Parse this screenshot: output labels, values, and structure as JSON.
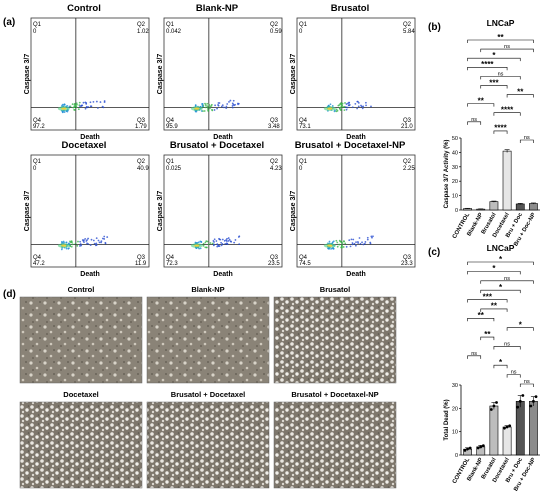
{
  "panel_labels": {
    "a": "(a)",
    "b": "(b)",
    "c": "(c)",
    "d": "(d)"
  },
  "flow": {
    "ylabel": "Caspase 3/7",
    "xlabel": "Death",
    "panels": [
      {
        "title": "Control",
        "q1": "0",
        "q2": "1.02",
        "q3": "1.79",
        "q4": "97.2"
      },
      {
        "title": "Blank-NP",
        "q1": "0.042",
        "q2": "0.59",
        "q3": "3.48",
        "q4": "95.9"
      },
      {
        "title": "Brusatol",
        "q1": "0",
        "q2": "5.84",
        "q3": "21.0",
        "q4": "73.1"
      },
      {
        "title": "Docetaxel",
        "q1": "0",
        "q2": "40.9",
        "q3": "11.9",
        "q4": "47.2"
      },
      {
        "title": "Brusatol + Docetaxel",
        "q1": "0.025",
        "q2": "4.23",
        "q3": "23.5",
        "q4": "72.3"
      },
      {
        "title": "Brusatol + Docetaxel-NP",
        "q1": "0",
        "q2": "2.25",
        "q3": "23.3",
        "q4": "74.5"
      }
    ]
  },
  "micro": {
    "titles": [
      "Control",
      "Blank-NP",
      "Brusatol",
      "Docetaxel",
      "Brusatol + Docetaxel",
      "Brusatol + Docetaxel-NP"
    ]
  },
  "chart_data": [
    {
      "type": "bar",
      "title": "LNCaP",
      "ylabel": "Caspase 3/7 Activity (%)",
      "ylim": [
        0,
        50
      ],
      "yticks": [
        0,
        10,
        20,
        30,
        40,
        50
      ],
      "categories": [
        "CONTROL",
        "Blank-NP",
        "Brusatol",
        "Docetaxel",
        "Bru + Doc",
        "Bru + Doc-NP"
      ],
      "values": [
        1.0,
        0.6,
        5.8,
        40.9,
        4.2,
        4.5
      ],
      "errors": [
        0.2,
        0.2,
        0.4,
        1.0,
        0.4,
        0.4
      ],
      "colors": [
        "#bdbdbd",
        "#bdbdbd",
        "#bdbdbd",
        "#e6e6e6",
        "#555555",
        "#8c8c8c"
      ],
      "significance": [
        {
          "a": 0,
          "b": 5,
          "label": "**"
        },
        {
          "a": 1,
          "b": 5,
          "label": "ns"
        },
        {
          "a": 0,
          "b": 4,
          "label": "*"
        },
        {
          "a": 0,
          "b": 3,
          "label": "****"
        },
        {
          "a": 1,
          "b": 4,
          "label": "ns"
        },
        {
          "a": 1,
          "b": 3,
          "label": "***"
        },
        {
          "a": 3,
          "b": 5,
          "label": "**"
        },
        {
          "a": 0,
          "b": 2,
          "label": "**"
        },
        {
          "a": 2,
          "b": 4,
          "label": "****"
        },
        {
          "a": 0,
          "b": 1,
          "label": "ns"
        },
        {
          "a": 2,
          "b": 3,
          "label": "****"
        },
        {
          "a": 4,
          "b": 5,
          "label": "ns"
        }
      ]
    },
    {
      "type": "bar",
      "title": "LNCaP",
      "ylabel": "Total Dead (%)",
      "ylim": [
        0,
        30
      ],
      "yticks": [
        0,
        10,
        20,
        30
      ],
      "categories": [
        "CONTROL",
        "Blank-NP",
        "Brusatol",
        "Docetaxel",
        "Bru + Doc",
        "Bru + Doc-NP"
      ],
      "values": [
        2.5,
        3.5,
        21.0,
        12.0,
        23.0,
        23.0
      ],
      "errors": [
        0.6,
        0.6,
        1.5,
        0.6,
        2.5,
        2.0
      ],
      "colors": [
        "#bdbdbd",
        "#bdbdbd",
        "#bdbdbd",
        "#e6e6e6",
        "#555555",
        "#8c8c8c"
      ],
      "points": [
        [
          2.0,
          2.6,
          3.0
        ],
        [
          3.0,
          3.5,
          4.0
        ],
        [
          19.5,
          21.0,
          22.5
        ],
        [
          11.5,
          12.0,
          12.5
        ],
        [
          20.5,
          23.0,
          25.5
        ],
        [
          21.0,
          23.0,
          25.0
        ]
      ],
      "significance": [
        {
          "a": 0,
          "b": 5,
          "label": "*"
        },
        {
          "a": 0,
          "b": 4,
          "label": "*"
        },
        {
          "a": 1,
          "b": 5,
          "label": "ns"
        },
        {
          "a": 1,
          "b": 4,
          "label": "*"
        },
        {
          "a": 0,
          "b": 3,
          "label": "***"
        },
        {
          "a": 1,
          "b": 3,
          "label": "**"
        },
        {
          "a": 0,
          "b": 2,
          "label": "**"
        },
        {
          "a": 3,
          "b": 5,
          "label": "*"
        },
        {
          "a": 1,
          "b": 2,
          "label": "**"
        },
        {
          "a": 2,
          "b": 4,
          "label": "ns"
        },
        {
          "a": 0,
          "b": 1,
          "label": "ns"
        },
        {
          "a": 2,
          "b": 3,
          "label": "*"
        },
        {
          "a": 3,
          "b": 4,
          "label": "ns"
        },
        {
          "a": 4,
          "b": 5,
          "label": "ns"
        }
      ]
    }
  ]
}
